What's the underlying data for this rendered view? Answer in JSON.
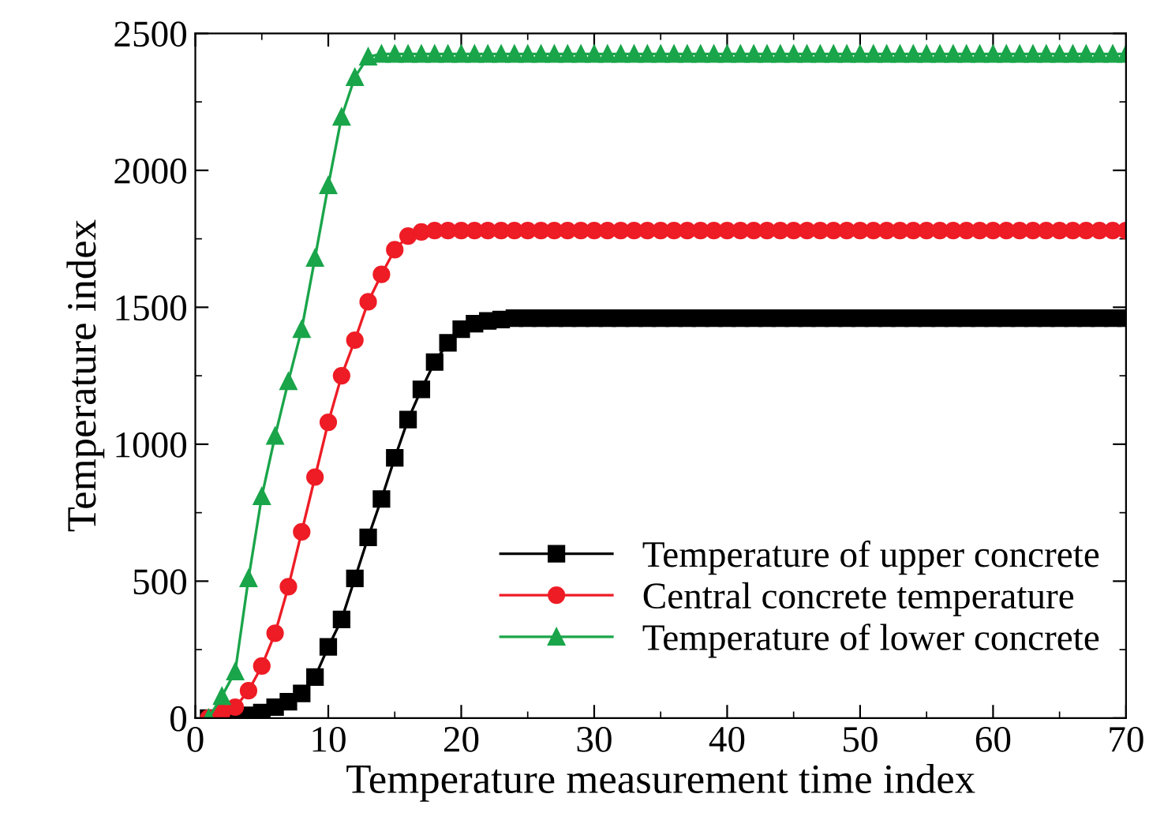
{
  "chart_data": {
    "type": "line",
    "xlabel": "Temperature measurement time index",
    "ylabel": "Temperature index",
    "x": [
      1,
      2,
      3,
      4,
      5,
      6,
      7,
      8,
      9,
      10,
      11,
      12,
      13,
      14,
      15,
      16,
      17,
      18,
      19,
      20,
      21,
      22,
      23,
      24,
      25,
      26,
      27,
      28,
      29,
      30,
      31,
      32,
      33,
      34,
      35,
      36,
      37,
      38,
      39,
      40,
      41,
      42,
      43,
      44,
      45,
      46,
      47,
      48,
      49,
      50,
      51,
      52,
      53,
      54,
      55,
      56,
      57,
      58,
      59,
      60,
      61,
      62,
      63,
      64,
      65,
      66,
      67,
      68,
      69,
      70
    ],
    "series": [
      {
        "name": "Temperature of upper concrete",
        "color": "#000000",
        "marker": "square",
        "values": [
          0,
          0,
          5,
          10,
          20,
          40,
          60,
          90,
          150,
          260,
          360,
          510,
          660,
          800,
          950,
          1090,
          1200,
          1300,
          1370,
          1420,
          1440,
          1450,
          1455,
          1460,
          1460,
          1460,
          1460,
          1460,
          1460,
          1460,
          1460,
          1460,
          1460,
          1460,
          1460,
          1460,
          1460,
          1460,
          1460,
          1460,
          1460,
          1460,
          1460,
          1460,
          1460,
          1460,
          1460,
          1460,
          1460,
          1460,
          1460,
          1460,
          1460,
          1460,
          1460,
          1460,
          1460,
          1460,
          1460,
          1460,
          1460,
          1460,
          1460,
          1460,
          1460,
          1460,
          1460,
          1460,
          1460,
          1460
        ]
      },
      {
        "name": "Central concrete temperature",
        "color": "#ee1c25",
        "marker": "circle",
        "values": [
          0,
          20,
          40,
          100,
          190,
          310,
          480,
          680,
          880,
          1080,
          1250,
          1380,
          1520,
          1620,
          1710,
          1760,
          1775,
          1780,
          1780,
          1780,
          1780,
          1780,
          1780,
          1780,
          1780,
          1780,
          1780,
          1780,
          1780,
          1780,
          1780,
          1780,
          1780,
          1780,
          1780,
          1780,
          1780,
          1780,
          1780,
          1780,
          1780,
          1780,
          1780,
          1780,
          1780,
          1780,
          1780,
          1780,
          1780,
          1780,
          1780,
          1780,
          1780,
          1780,
          1780,
          1780,
          1780,
          1780,
          1780,
          1780,
          1780,
          1780,
          1780,
          1780,
          1780,
          1780,
          1780,
          1780,
          1780,
          1780
        ]
      },
      {
        "name": "Temperature of lower concrete",
        "color": "#1aa54a",
        "marker": "triangle",
        "values": [
          0,
          80,
          170,
          510,
          810,
          1030,
          1230,
          1420,
          1680,
          1945,
          2195,
          2340,
          2415,
          2425,
          2425,
          2425,
          2425,
          2425,
          2425,
          2425,
          2425,
          2425,
          2425,
          2425,
          2425,
          2425,
          2425,
          2425,
          2425,
          2425,
          2425,
          2425,
          2425,
          2425,
          2425,
          2425,
          2425,
          2425,
          2425,
          2425,
          2425,
          2425,
          2425,
          2425,
          2425,
          2425,
          2425,
          2425,
          2425,
          2425,
          2425,
          2425,
          2425,
          2425,
          2425,
          2425,
          2425,
          2425,
          2425,
          2425,
          2425,
          2425,
          2425,
          2425,
          2425,
          2425,
          2425,
          2425,
          2425,
          2425
        ]
      }
    ],
    "xlim": [
      0,
      70
    ],
    "ylim": [
      0,
      2500
    ],
    "xticks": [
      0,
      10,
      20,
      30,
      40,
      50,
      60,
      70
    ],
    "yticks": [
      0,
      500,
      1000,
      1500,
      2000,
      2500
    ],
    "grid": false,
    "legend": "lower right",
    "line_style": "solid"
  }
}
